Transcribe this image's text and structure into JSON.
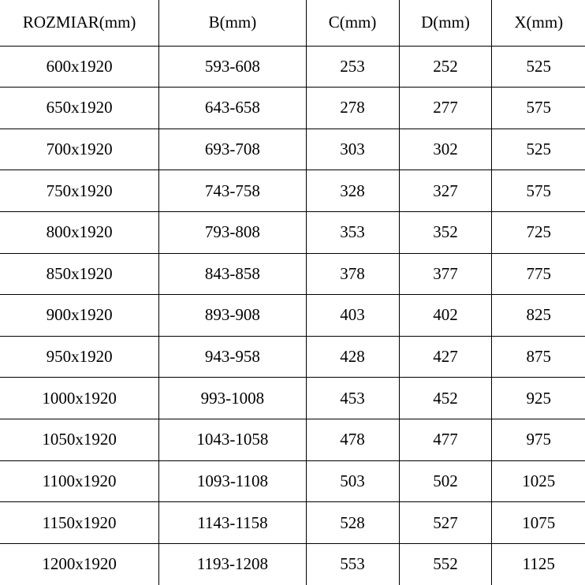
{
  "table": {
    "type": "table",
    "background_color": "#ffffff",
    "text_color": "#000000",
    "border_color": "#000000",
    "font_family": "SimSun / monospace serif",
    "header_fontsize": 21,
    "cell_fontsize": 21,
    "columns": [
      {
        "label": "ROZMIAR(mm)",
        "width_pct": 27.2
      },
      {
        "label": "B(mm)",
        "width_pct": 25.1
      },
      {
        "label": "C(mm)",
        "width_pct": 15.9
      },
      {
        "label": "D(mm)",
        "width_pct": 15.9
      },
      {
        "label": "X(mm)",
        "width_pct": 15.9
      }
    ],
    "rows": [
      [
        "600x1920",
        "593-608",
        "253",
        "252",
        "525"
      ],
      [
        "650x1920",
        "643-658",
        "278",
        "277",
        "575"
      ],
      [
        "700x1920",
        "693-708",
        "303",
        "302",
        "525"
      ],
      [
        "750x1920",
        "743-758",
        "328",
        "327",
        "575"
      ],
      [
        "800x1920",
        "793-808",
        "353",
        "352",
        "725"
      ],
      [
        "850x1920",
        "843-858",
        "378",
        "377",
        "775"
      ],
      [
        "900x1920",
        "893-908",
        "403",
        "402",
        "825"
      ],
      [
        "950x1920",
        "943-958",
        "428",
        "427",
        "875"
      ],
      [
        "1000x1920",
        "993-1008",
        "453",
        "452",
        "925"
      ],
      [
        "1050x1920",
        "1043-1058",
        "478",
        "477",
        "975"
      ],
      [
        "1100x1920",
        "1093-1108",
        "503",
        "502",
        "1025"
      ],
      [
        "1150x1920",
        "1143-1158",
        "528",
        "527",
        "1075"
      ],
      [
        "1200x1920",
        "1193-1208",
        "553",
        "552",
        "1125"
      ]
    ]
  }
}
